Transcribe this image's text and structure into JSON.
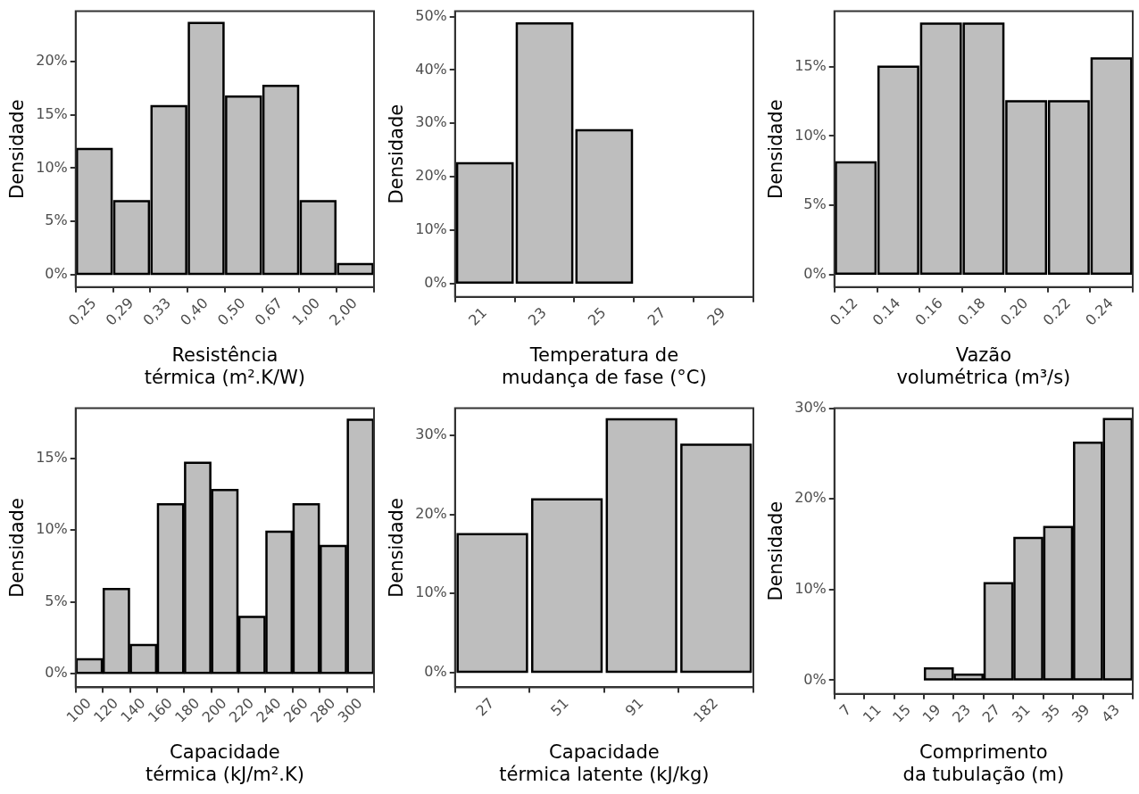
{
  "chart_data": [
    {
      "type": "bar",
      "xlabel": "Resistência\ntérmica (m².K/W)",
      "ylabel": "Densidade",
      "categories": [
        "0,25",
        "0,29",
        "0,33",
        "0,40",
        "0,50",
        "0,67",
        "1,00",
        "2,00"
      ],
      "values": [
        11.8,
        6.9,
        15.8,
        23.6,
        16.7,
        17.7,
        6.9,
        1.0
      ],
      "color": "#bebebe",
      "ylim": [
        -1.15,
        24.7
      ],
      "yticks": [
        {
          "value": 0,
          "label": "0%"
        },
        {
          "value": 5,
          "label": "5%"
        },
        {
          "value": 10,
          "label": "10%"
        },
        {
          "value": 15,
          "label": "15%"
        },
        {
          "value": 20,
          "label": "20%"
        }
      ],
      "grid": false,
      "legend": false
    },
    {
      "type": "bar",
      "xlabel": "Temperatura de\nmudança de fase (°C)",
      "ylabel": "Densidade",
      "categories": [
        "21",
        "23",
        "25",
        "27",
        "29"
      ],
      "values": [
        22.5,
        48.7,
        28.7,
        0,
        0
      ],
      "color": "#bebebe",
      "ylim": [
        -2.5,
        51
      ],
      "yticks": [
        {
          "value": 0,
          "label": "0%"
        },
        {
          "value": 10,
          "label": "10%"
        },
        {
          "value": 20,
          "label": "20%"
        },
        {
          "value": 30,
          "label": "30%"
        },
        {
          "value": 40,
          "label": "40%"
        },
        {
          "value": 50,
          "label": "50%"
        }
      ],
      "grid": false,
      "legend": false
    },
    {
      "type": "bar",
      "xlabel": "Vazão\nvolumétrica (m³/s)",
      "ylabel": "Densidade",
      "categories": [
        "0.12",
        "0.14",
        "0.16",
        "0.18",
        "0.20",
        "0.22",
        "0.24"
      ],
      "values": [
        8.1,
        15.0,
        18.1,
        18.1,
        12.5,
        12.5,
        15.6
      ],
      "color": "#bebebe",
      "ylim": [
        -0.9,
        19
      ],
      "yticks": [
        {
          "value": 0,
          "label": "0%"
        },
        {
          "value": 5,
          "label": "5%"
        },
        {
          "value": 10,
          "label": "10%"
        },
        {
          "value": 15,
          "label": "15%"
        }
      ],
      "grid": false,
      "legend": false
    },
    {
      "type": "bar",
      "xlabel": "Capacidade\ntérmica (kJ/m².K)",
      "ylabel": "Densidade",
      "categories": [
        "100",
        "120",
        "140",
        "160",
        "180",
        "200",
        "220",
        "240",
        "260",
        "280",
        "300"
      ],
      "values": [
        1.0,
        5.9,
        2.0,
        11.8,
        14.7,
        12.8,
        3.95,
        9.9,
        11.8,
        8.9,
        17.7
      ],
      "color": "#bebebe",
      "ylim": [
        -0.95,
        18.5
      ],
      "yticks": [
        {
          "value": 0,
          "label": "0%"
        },
        {
          "value": 5,
          "label": "5%"
        },
        {
          "value": 10,
          "label": "10%"
        },
        {
          "value": 15,
          "label": "15%"
        }
      ],
      "grid": false,
      "legend": false
    },
    {
      "type": "bar",
      "xlabel": "Capacidade\ntérmica latente (kJ/kg)",
      "ylabel": "Densidade",
      "categories": [
        "27",
        "51",
        "91",
        "182"
      ],
      "values": [
        17.5,
        21.9,
        32.0,
        28.8
      ],
      "color": "#bebebe",
      "ylim": [
        -1.85,
        33.4
      ],
      "yticks": [
        {
          "value": 0,
          "label": "0%"
        },
        {
          "value": 10,
          "label": "10%"
        },
        {
          "value": 20,
          "label": "20%"
        },
        {
          "value": 30,
          "label": "30%"
        }
      ],
      "grid": false,
      "legend": false
    },
    {
      "type": "bar",
      "xlabel": "Comprimento\nda tubulação (m)",
      "ylabel": "Densidade",
      "categories": [
        "7",
        "11",
        "15",
        "19",
        "23",
        "27",
        "31",
        "35",
        "39",
        "43"
      ],
      "values": [
        0,
        0,
        0,
        1.3,
        0.6,
        10.7,
        15.7,
        16.9,
        26.2,
        28.8
      ],
      "color": "#bebebe",
      "ylim": [
        -1.5,
        30
      ],
      "yticks": [
        {
          "value": 0,
          "label": "0%"
        },
        {
          "value": 10,
          "label": "10%"
        },
        {
          "value": 20,
          "label": "20%"
        },
        {
          "value": 30,
          "label": "30%"
        }
      ],
      "grid": false,
      "legend": false
    }
  ]
}
